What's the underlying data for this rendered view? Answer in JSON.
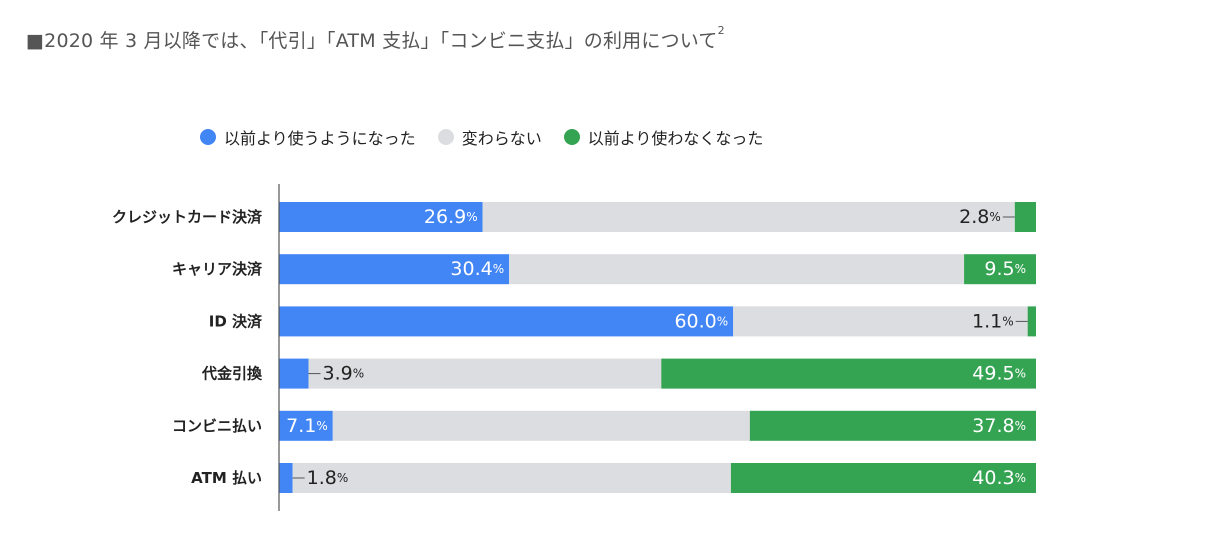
{
  "title": {
    "text": "■2020 年 3 月以降では、「代引」「ATM 支払」「コンビニ支払」の利用について",
    "footnote": "2"
  },
  "colors": {
    "increased": "#4285f4",
    "unchanged": "#dcdde0",
    "decreased": "#34a352",
    "axis": "#555555"
  },
  "chart_data": {
    "type": "bar",
    "orientation": "horizontal",
    "stacked": true,
    "normalized": true,
    "unit": "%",
    "categories": [
      "クレジットカード決済",
      "キャリア決済",
      "ID 決済",
      "代金引換",
      "コンビニ払い",
      "ATM 払い"
    ],
    "series": [
      {
        "name": "以前より使うようになった",
        "values": [
          26.9,
          30.4,
          60.0,
          3.9,
          7.1,
          1.8
        ]
      },
      {
        "name": "変わらない",
        "values": [
          70.3,
          60.1,
          38.9,
          46.6,
          55.1,
          57.9
        ]
      },
      {
        "name": "以前より使わなくなった",
        "values": [
          2.8,
          9.5,
          1.1,
          49.5,
          37.8,
          40.3
        ]
      }
    ],
    "labels": {
      "increased": [
        "26.9",
        "30.4",
        "60.0",
        "3.9",
        "7.1",
        "1.8"
      ],
      "decreased": [
        "2.8",
        "9.5",
        "1.1",
        "49.5",
        "37.8",
        "40.3"
      ]
    },
    "xlim": [
      0,
      100
    ],
    "grid": false,
    "legend_position": "top"
  }
}
